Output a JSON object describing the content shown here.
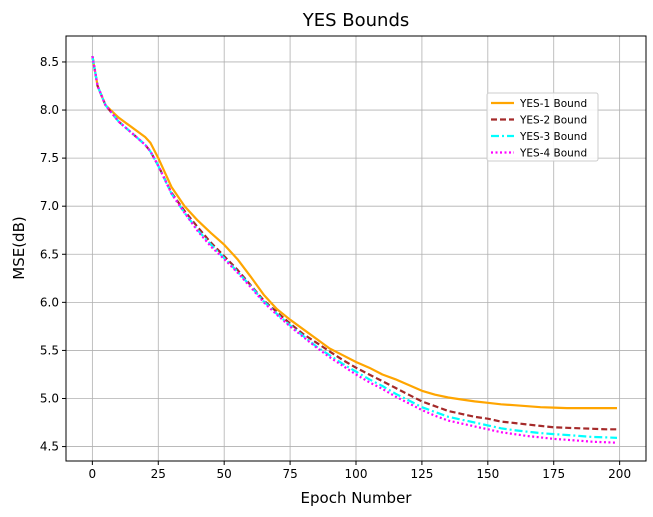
{
  "chart_data": {
    "type": "line",
    "title": "YES Bounds",
    "xlabel": "Epoch Number",
    "ylabel": "MSE(dB)",
    "xlim": [
      -10,
      210
    ],
    "ylim": [
      4.35,
      8.77
    ],
    "xticks": [
      0,
      25,
      50,
      75,
      100,
      125,
      150,
      175,
      200
    ],
    "yticks": [
      4.5,
      5.0,
      5.5,
      6.0,
      6.5,
      7.0,
      7.5,
      8.0,
      8.5
    ],
    "grid": true,
    "legend_position": "upper-right",
    "series": [
      {
        "name": "YES-1 Bound",
        "color": "#ffa500",
        "dash": "solid",
        "x": [
          0,
          2,
          5,
          10,
          15,
          20,
          22,
          25,
          30,
          35,
          40,
          45,
          50,
          55,
          60,
          65,
          70,
          75,
          80,
          85,
          90,
          95,
          100,
          105,
          110,
          115,
          120,
          125,
          130,
          135,
          140,
          145,
          150,
          155,
          160,
          165,
          170,
          175,
          180,
          185,
          190,
          195,
          199
        ],
        "y": [
          8.56,
          8.25,
          8.05,
          7.92,
          7.82,
          7.72,
          7.66,
          7.5,
          7.2,
          7.0,
          6.85,
          6.72,
          6.6,
          6.45,
          6.27,
          6.08,
          5.93,
          5.82,
          5.72,
          5.62,
          5.52,
          5.45,
          5.38,
          5.32,
          5.25,
          5.2,
          5.14,
          5.08,
          5.04,
          5.01,
          4.99,
          4.97,
          4.955,
          4.94,
          4.93,
          4.92,
          4.91,
          4.905,
          4.9,
          4.9,
          4.9,
          4.9,
          4.9
        ]
      },
      {
        "name": "YES-2 Bound",
        "color": "#a52a2a",
        "dash": "dashed",
        "x": [
          0,
          2,
          5,
          10,
          15,
          20,
          22,
          25,
          30,
          35,
          40,
          45,
          50,
          55,
          60,
          65,
          70,
          75,
          80,
          85,
          90,
          95,
          100,
          105,
          110,
          115,
          120,
          125,
          130,
          135,
          140,
          145,
          150,
          155,
          160,
          165,
          170,
          175,
          180,
          185,
          190,
          195,
          199
        ],
        "y": [
          8.56,
          8.25,
          8.05,
          7.88,
          7.76,
          7.64,
          7.57,
          7.42,
          7.14,
          6.95,
          6.78,
          6.62,
          6.48,
          6.34,
          6.18,
          6.02,
          5.9,
          5.78,
          5.67,
          5.58,
          5.49,
          5.4,
          5.32,
          5.25,
          5.18,
          5.11,
          5.04,
          4.97,
          4.92,
          4.87,
          4.84,
          4.81,
          4.79,
          4.76,
          4.745,
          4.73,
          4.715,
          4.7,
          4.695,
          4.69,
          4.685,
          4.68,
          4.68
        ]
      },
      {
        "name": "YES-3 Bound",
        "color": "#00ffff",
        "dash": "dashdot",
        "x": [
          0,
          2,
          5,
          10,
          15,
          20,
          22,
          25,
          30,
          35,
          40,
          45,
          50,
          55,
          60,
          65,
          70,
          75,
          80,
          85,
          90,
          95,
          100,
          105,
          110,
          115,
          120,
          125,
          130,
          135,
          140,
          145,
          150,
          155,
          160,
          165,
          170,
          175,
          180,
          185,
          190,
          195,
          199
        ],
        "y": [
          8.56,
          8.25,
          8.05,
          7.88,
          7.76,
          7.64,
          7.57,
          7.42,
          7.13,
          6.93,
          6.75,
          6.6,
          6.46,
          6.32,
          6.17,
          6.01,
          5.88,
          5.76,
          5.65,
          5.54,
          5.45,
          5.36,
          5.28,
          5.2,
          5.13,
          5.05,
          4.98,
          4.91,
          4.86,
          4.81,
          4.78,
          4.75,
          4.72,
          4.69,
          4.67,
          4.655,
          4.64,
          4.63,
          4.62,
          4.61,
          4.6,
          4.595,
          4.59
        ]
      },
      {
        "name": "YES-4 Bound",
        "color": "#ff00ff",
        "dash": "dotted",
        "x": [
          0,
          2,
          5,
          10,
          15,
          20,
          22,
          25,
          30,
          35,
          40,
          45,
          50,
          55,
          60,
          65,
          70,
          75,
          80,
          85,
          90,
          95,
          100,
          105,
          110,
          115,
          120,
          125,
          130,
          135,
          140,
          145,
          150,
          155,
          160,
          165,
          170,
          175,
          180,
          185,
          190,
          195,
          199
        ],
        "y": [
          8.56,
          8.25,
          8.05,
          7.88,
          7.76,
          7.64,
          7.57,
          7.42,
          7.13,
          6.93,
          6.74,
          6.58,
          6.45,
          6.31,
          6.16,
          6.0,
          5.87,
          5.75,
          5.64,
          5.53,
          5.43,
          5.34,
          5.25,
          5.17,
          5.1,
          5.02,
          4.95,
          4.88,
          4.82,
          4.77,
          4.74,
          4.71,
          4.68,
          4.65,
          4.63,
          4.61,
          4.595,
          4.58,
          4.57,
          4.56,
          4.55,
          4.545,
          4.54
        ]
      }
    ]
  }
}
